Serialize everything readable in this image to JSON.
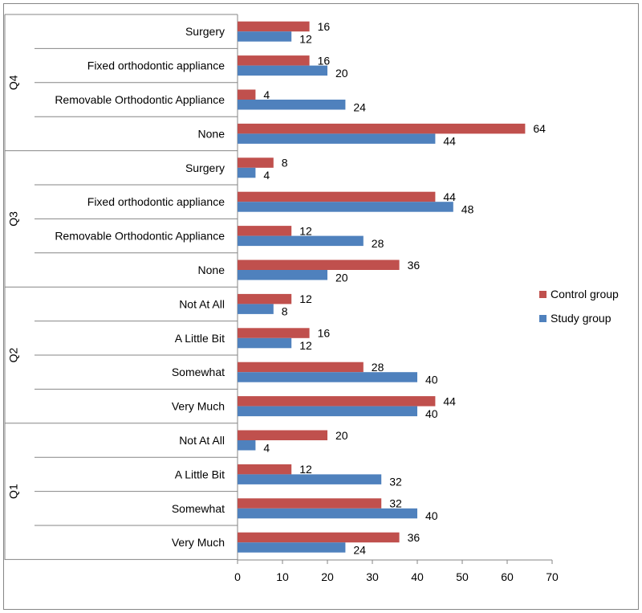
{
  "chart_data": {
    "type": "bar",
    "orientation": "horizontal",
    "title": "",
    "xlabel": "",
    "ylabel": "",
    "xlim": [
      0,
      70
    ],
    "x_ticks": [
      0,
      10,
      20,
      30,
      40,
      50,
      60,
      70
    ],
    "grid": false,
    "legend_position": "right",
    "series_colors": {
      "control": "#c0504d",
      "study": "#4f81bd"
    },
    "series": [
      {
        "name": "Control group",
        "key": "control"
      },
      {
        "name": "Study group",
        "key": "study"
      }
    ],
    "groups": [
      {
        "label": "Q4",
        "categories": [
          {
            "label": "Surgery",
            "control": 16,
            "study": 12
          },
          {
            "label": "Fixed orthodontic appliance",
            "control": 16,
            "study": 20
          },
          {
            "label": "Removable Orthodontic Appliance",
            "control": 4,
            "study": 24
          },
          {
            "label": "None",
            "control": 64,
            "study": 44
          }
        ]
      },
      {
        "label": "Q3",
        "categories": [
          {
            "label": "Surgery",
            "control": 8,
            "study": 4
          },
          {
            "label": "Fixed orthodontic appliance",
            "control": 44,
            "study": 48
          },
          {
            "label": "Removable Orthodontic Appliance",
            "control": 12,
            "study": 28
          },
          {
            "label": "None",
            "control": 36,
            "study": 20
          }
        ]
      },
      {
        "label": "Q2",
        "categories": [
          {
            "label": "Not At All",
            "control": 12,
            "study": 8
          },
          {
            "label": "A Little Bit",
            "control": 16,
            "study": 12
          },
          {
            "label": "Somewhat",
            "control": 28,
            "study": 40
          },
          {
            "label": "Very Much",
            "control": 44,
            "study": 40
          }
        ]
      },
      {
        "label": "Q1",
        "categories": [
          {
            "label": "Not At All",
            "control": 20,
            "study": 4
          },
          {
            "label": "A Little Bit",
            "control": 12,
            "study": 32
          },
          {
            "label": "Somewhat",
            "control": 32,
            "study": 40
          },
          {
            "label": "Very Much",
            "control": 36,
            "study": 24
          }
        ]
      }
    ]
  }
}
